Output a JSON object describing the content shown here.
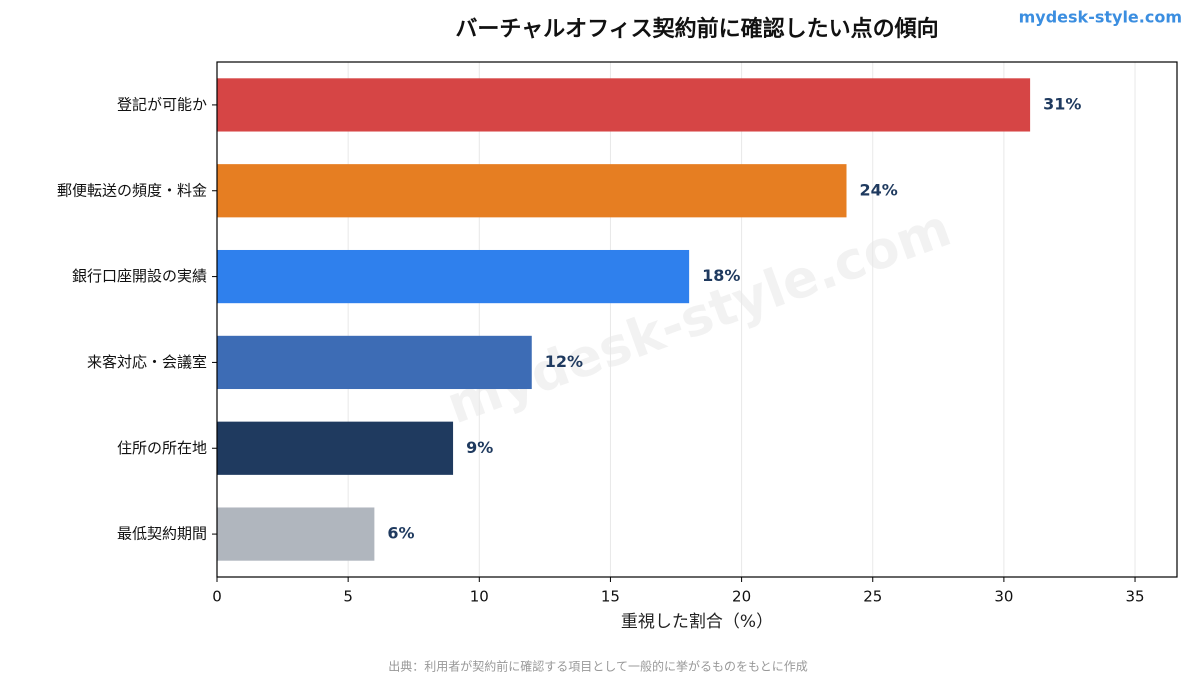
{
  "chart_data": {
    "type": "bar",
    "orientation": "horizontal",
    "title": "バーチャルオフィス契約前に確認したい点の傾向",
    "brand": "mydesk-style.com",
    "watermark": "mydesk-style.com",
    "xlabel": "重視した割合（%）",
    "source": "出典：利用者が契約前に確認する項目として一般的に挙がるものをもとに作成",
    "categories": [
      "登記が可能か",
      "郵便転送の頻度・料金",
      "銀行口座開設の実績",
      "来客対応・会議室",
      "住所の所在地",
      "最低契約期間"
    ],
    "values": [
      31,
      24,
      18,
      12,
      9,
      6
    ],
    "value_labels": [
      "31%",
      "24%",
      "18%",
      "12%",
      "9%",
      "6%"
    ],
    "colors": [
      "#d64545",
      "#e67e22",
      "#2f80ed",
      "#3d6cb5",
      "#1f3a5f",
      "#b0b6be"
    ],
    "xlim": [
      0,
      36.6
    ],
    "xticks": [
      0,
      5,
      10,
      15,
      20,
      25,
      30,
      35
    ],
    "grid": true
  }
}
